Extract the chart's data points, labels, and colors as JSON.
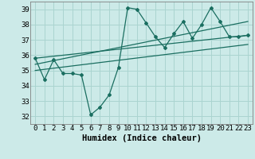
{
  "title": "",
  "xlabel": "Humidex (Indice chaleur)",
  "ylabel": "",
  "bg_color": "#cceae8",
  "grid_color": "#aad4d0",
  "line_color": "#1a6e60",
  "x_ticks": [
    0,
    1,
    2,
    3,
    4,
    5,
    6,
    7,
    8,
    9,
    10,
    11,
    12,
    13,
    14,
    15,
    16,
    17,
    18,
    19,
    20,
    21,
    22,
    23
  ],
  "y_ticks": [
    32,
    33,
    34,
    35,
    36,
    37,
    38,
    39
  ],
  "ylim": [
    31.5,
    39.5
  ],
  "xlim": [
    -0.5,
    23.5
  ],
  "main_series_x": [
    0,
    1,
    2,
    3,
    4,
    5,
    6,
    7,
    8,
    9,
    10,
    11,
    12,
    13,
    14,
    15,
    16,
    17,
    18,
    19,
    20,
    21,
    22,
    23
  ],
  "main_series_y": [
    35.8,
    34.4,
    35.7,
    34.8,
    34.8,
    34.7,
    32.1,
    32.6,
    33.4,
    35.2,
    39.1,
    39.0,
    38.1,
    37.2,
    36.5,
    37.4,
    38.2,
    37.1,
    38.0,
    39.1,
    38.2,
    37.2,
    37.2,
    37.3
  ],
  "trend1_x": [
    0,
    23
  ],
  "trend1_y": [
    35.8,
    37.3
  ],
  "trend2_x": [
    0,
    23
  ],
  "trend2_y": [
    35.4,
    38.2
  ],
  "trend3_x": [
    0,
    23
  ],
  "trend3_y": [
    35.0,
    36.7
  ],
  "font_family": "monospace",
  "xlabel_fontsize": 7.5,
  "tick_fontsize": 6.5
}
